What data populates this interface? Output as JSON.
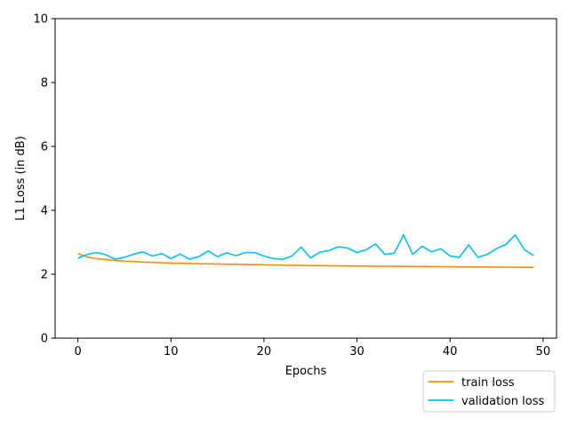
{
  "chart_data": {
    "type": "line",
    "title": "",
    "xlabel": "Epochs",
    "ylabel": "L1 Loss (in dB)",
    "xlim": [
      -2.45,
      51.45
    ],
    "ylim": [
      0,
      10
    ],
    "xticks": [
      0,
      10,
      20,
      30,
      40,
      50
    ],
    "yticks": [
      0,
      2,
      4,
      6,
      8,
      10
    ],
    "grid": false,
    "legend": "bottom-right",
    "x": [
      0,
      1,
      2,
      3,
      4,
      5,
      6,
      7,
      8,
      9,
      10,
      11,
      12,
      13,
      14,
      15,
      16,
      17,
      18,
      19,
      20,
      21,
      22,
      23,
      24,
      25,
      26,
      27,
      28,
      29,
      30,
      31,
      32,
      33,
      34,
      35,
      36,
      37,
      38,
      39,
      40,
      41,
      42,
      43,
      44,
      45,
      46,
      47,
      48,
      49
    ],
    "series": [
      {
        "name": "train loss",
        "color": "#ff8c00",
        "values": [
          2.65,
          2.54,
          2.49,
          2.46,
          2.43,
          2.41,
          2.4,
          2.38,
          2.37,
          2.36,
          2.35,
          2.345,
          2.335,
          2.33,
          2.325,
          2.32,
          2.315,
          2.31,
          2.305,
          2.3,
          2.295,
          2.29,
          2.285,
          2.28,
          2.275,
          2.27,
          2.268,
          2.265,
          2.262,
          2.26,
          2.258,
          2.255,
          2.252,
          2.25,
          2.248,
          2.245,
          2.243,
          2.24,
          2.238,
          2.236,
          2.234,
          2.232,
          2.23,
          2.228,
          2.226,
          2.224,
          2.222,
          2.22,
          2.218,
          2.216
        ]
      },
      {
        "name": "validation loss",
        "color": "#00bfff",
        "values": [
          2.5,
          2.62,
          2.68,
          2.61,
          2.47,
          2.53,
          2.63,
          2.7,
          2.57,
          2.65,
          2.49,
          2.63,
          2.47,
          2.55,
          2.73,
          2.55,
          2.67,
          2.58,
          2.68,
          2.68,
          2.57,
          2.49,
          2.47,
          2.57,
          2.85,
          2.51,
          2.69,
          2.74,
          2.86,
          2.82,
          2.68,
          2.77,
          2.95,
          2.62,
          2.66,
          3.23,
          2.62,
          2.88,
          2.7,
          2.8,
          2.57,
          2.53,
          2.92,
          2.53,
          2.62,
          2.8,
          2.93,
          3.23,
          2.77,
          2.58
        ]
      }
    ]
  }
}
